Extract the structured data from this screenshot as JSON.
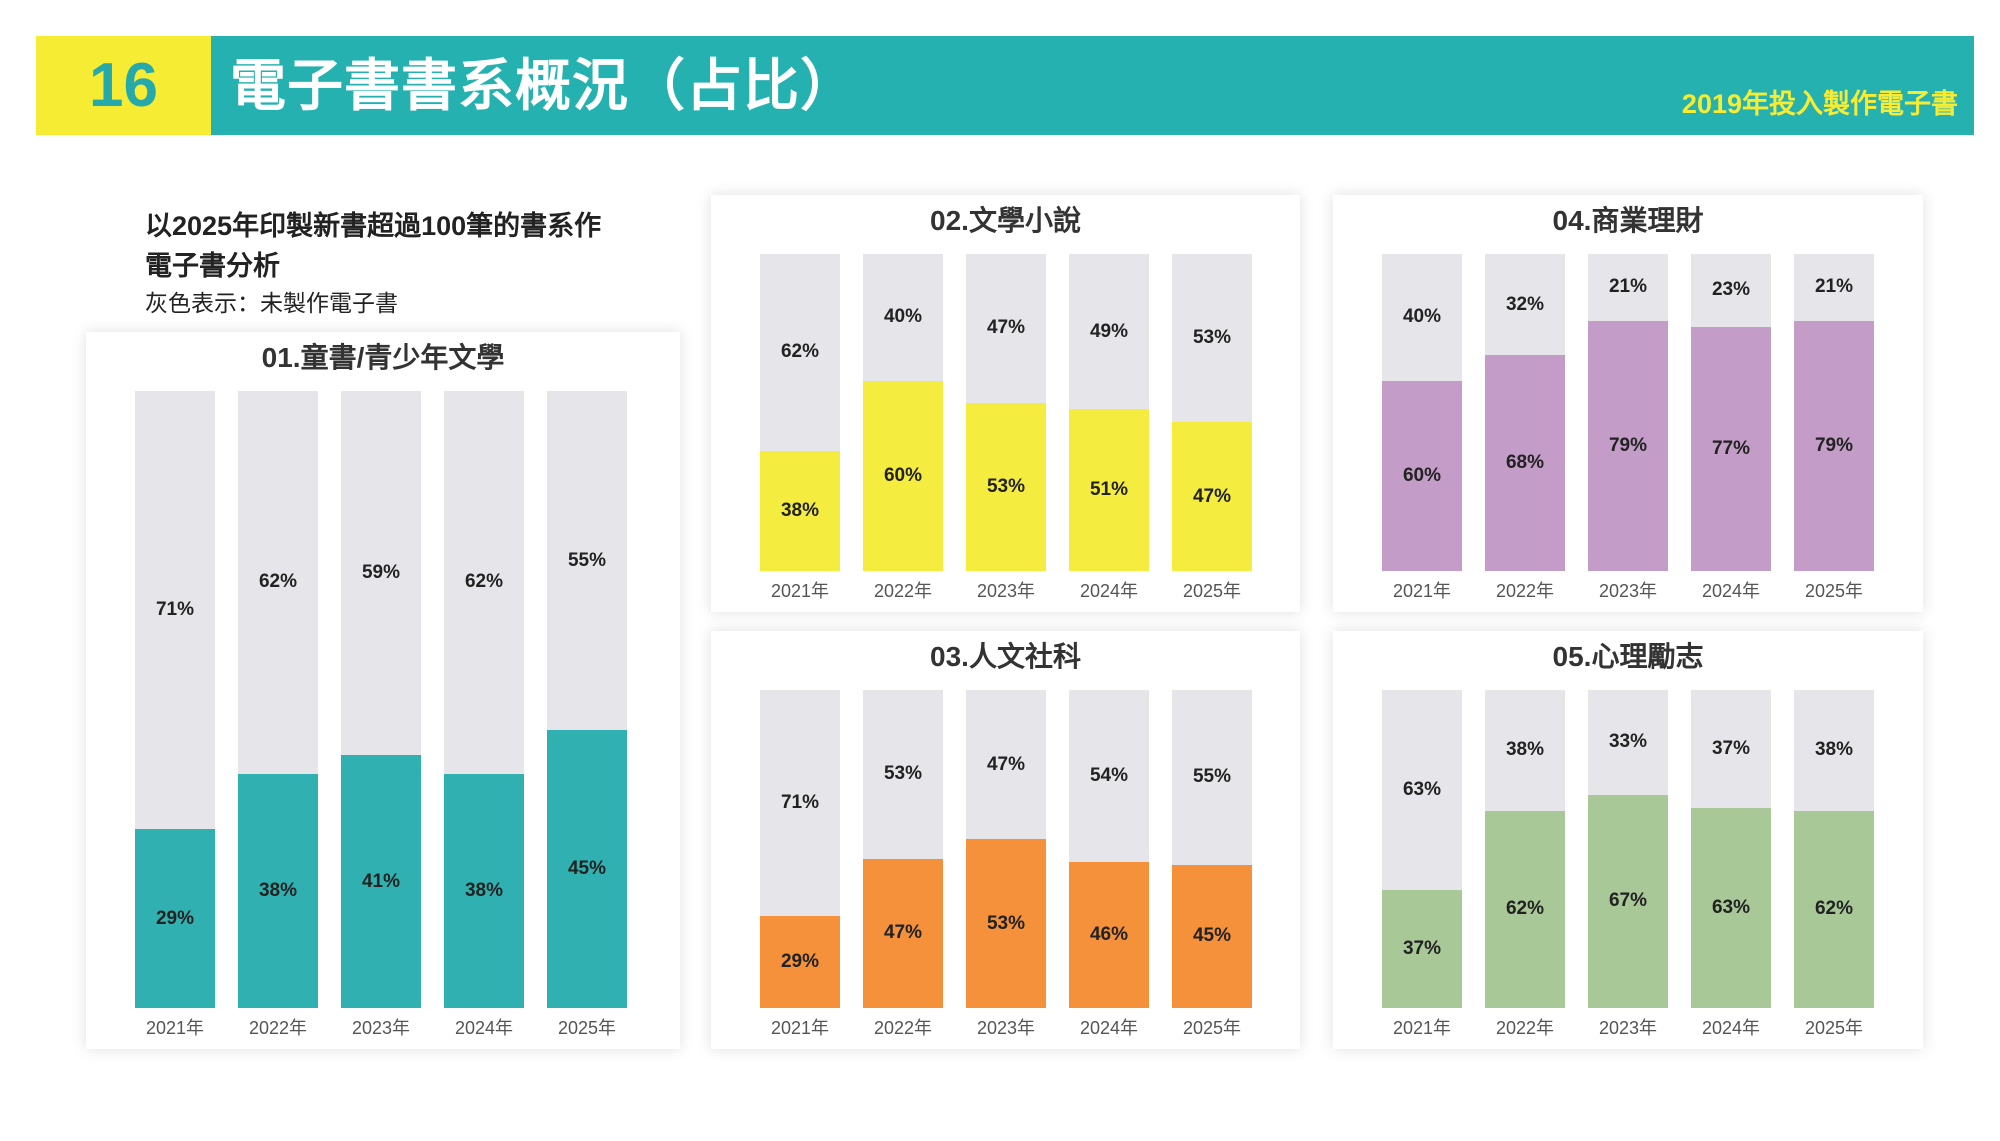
{
  "header": {
    "number": "16",
    "title": "電子書書系概況（占比）",
    "subtitle": "2019年投入製作電子書"
  },
  "intro": {
    "line1": "以2025年印製新書超過100筆的書系作",
    "line2": "電子書分析",
    "line3": "灰色表示：未製作電子書"
  },
  "colors": {
    "header": "#26b1b1",
    "grey": "#e6e6ea"
  },
  "chart_data": [
    {
      "type": "bar",
      "stacked": true,
      "title": "01.童書/青少年文學",
      "categories": [
        "2021年",
        "2022年",
        "2023年",
        "2024年",
        "2025年"
      ],
      "color": "#30b0b0",
      "series": [
        {
          "name": "製作電子書",
          "values": [
            29,
            38,
            41,
            38,
            45
          ]
        },
        {
          "name": "未製作電子書",
          "values": [
            71,
            62,
            59,
            62,
            55
          ]
        }
      ],
      "ylim": [
        0,
        100
      ]
    },
    {
      "type": "bar",
      "stacked": true,
      "title": "02.文學小說",
      "categories": [
        "2021年",
        "2022年",
        "2023年",
        "2024年",
        "2025年"
      ],
      "color": "#f5ec40",
      "series": [
        {
          "name": "製作電子書",
          "values": [
            38,
            60,
            53,
            51,
            47
          ]
        },
        {
          "name": "未製作電子書",
          "values": [
            62,
            40,
            47,
            49,
            53
          ]
        }
      ],
      "ylim": [
        0,
        100
      ]
    },
    {
      "type": "bar",
      "stacked": true,
      "title": "03.人文社科",
      "categories": [
        "2021年",
        "2022年",
        "2023年",
        "2024年",
        "2025年"
      ],
      "color": "#f4913a",
      "series": [
        {
          "name": "製作電子書",
          "values": [
            29,
            47,
            53,
            46,
            45
          ]
        },
        {
          "name": "未製作電子書",
          "values": [
            71,
            53,
            47,
            54,
            55
          ]
        }
      ],
      "ylim": [
        0,
        100
      ]
    },
    {
      "type": "bar",
      "stacked": true,
      "title": "04.商業理財",
      "categories": [
        "2021年",
        "2022年",
        "2023年",
        "2024年",
        "2025年"
      ],
      "color": "#c49cc8",
      "series": [
        {
          "name": "製作電子書",
          "values": [
            60,
            68,
            79,
            77,
            79
          ]
        },
        {
          "name": "未製作電子書",
          "values": [
            40,
            32,
            21,
            23,
            21
          ]
        }
      ],
      "ylim": [
        0,
        100
      ]
    },
    {
      "type": "bar",
      "stacked": true,
      "title": "05.心理勵志",
      "categories": [
        "2021年",
        "2022年",
        "2023年",
        "2024年",
        "2025年"
      ],
      "color": "#a8c898",
      "series": [
        {
          "name": "製作電子書",
          "values": [
            37,
            62,
            67,
            63,
            62
          ]
        },
        {
          "name": "未製作電子書",
          "values": [
            63,
            38,
            33,
            37,
            38
          ]
        }
      ],
      "ylim": [
        0,
        100
      ]
    }
  ]
}
